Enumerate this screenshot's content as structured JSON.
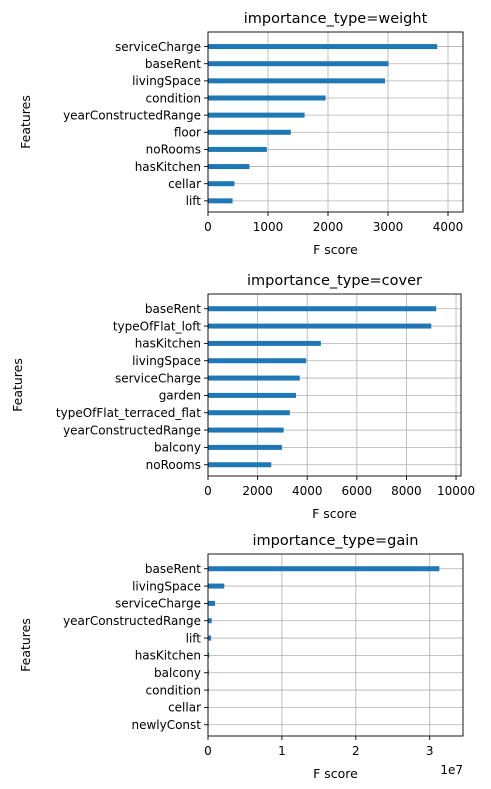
{
  "chart_data": [
    {
      "type": "bar",
      "orientation": "horizontal",
      "title": "importance_type=weight",
      "xlabel": "F score",
      "ylabel": "Features",
      "categories": [
        "serviceCharge",
        "baseRent",
        "livingSpace",
        "condition",
        "yearConstructedRange",
        "floor",
        "noRooms",
        "hasKitchen",
        "cellar",
        "lift"
      ],
      "values": [
        3820,
        3010,
        2950,
        1960,
        1610,
        1380,
        980,
        690,
        440,
        410
      ],
      "xlim": [
        0,
        4250
      ],
      "xticks": [
        0,
        1000,
        2000,
        3000,
        4000
      ],
      "xtick_labels": [
        "0",
        "1000",
        "2000",
        "3000",
        "4000"
      ],
      "offset_label": "",
      "grid": true,
      "bar_color": "#1f77b4"
    },
    {
      "type": "bar",
      "orientation": "horizontal",
      "title": "importance_type=cover",
      "xlabel": "F score",
      "ylabel": "Features",
      "categories": [
        "baseRent",
        "typeOfFlat_loft",
        "hasKitchen",
        "livingSpace",
        "serviceCharge",
        "garden",
        "typeOfFlat_terraced_flat",
        "yearConstructedRange",
        "balcony",
        "noRooms"
      ],
      "values": [
        9200,
        9000,
        4550,
        3960,
        3700,
        3550,
        3300,
        3050,
        2980,
        2550
      ],
      "xlim": [
        0,
        10200
      ],
      "xticks": [
        0,
        2000,
        4000,
        6000,
        8000,
        10000
      ],
      "xtick_labels": [
        "0",
        "2000",
        "4000",
        "6000",
        "8000",
        "10000"
      ],
      "offset_label": "",
      "grid": true,
      "bar_color": "#1f77b4"
    },
    {
      "type": "bar",
      "orientation": "horizontal",
      "title": "importance_type=gain",
      "xlabel": "F score",
      "ylabel": "Features",
      "categories": [
        "baseRent",
        "livingSpace",
        "serviceCharge",
        "yearConstructedRange",
        "lift",
        "hasKitchen",
        "balcony",
        "condition",
        "cellar",
        "newlyConst"
      ],
      "values": [
        31300000,
        2200000,
        950000,
        500000,
        420000,
        150000,
        120000,
        100000,
        80000,
        60000
      ],
      "xlim": [
        0,
        34500000
      ],
      "xticks": [
        0,
        10000000,
        20000000,
        30000000
      ],
      "xtick_labels": [
        "0",
        "1",
        "2",
        "3"
      ],
      "offset_label": "1e7",
      "grid": true,
      "bar_color": "#1f77b4"
    }
  ]
}
